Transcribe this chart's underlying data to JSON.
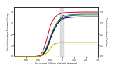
{
  "xlim": [
    -400,
    300
  ],
  "ylim_left": [
    0,
    4.5
  ],
  "ylim_right": [
    0,
    0.45
  ],
  "gray_band": [
    -14,
    14
  ],
  "lines": {
    "red": {
      "color": "#cc2222",
      "x": [
        -400,
        -380,
        -350,
        -300,
        -250,
        -220,
        -200,
        -180,
        -160,
        -140,
        -120,
        -100,
        -80,
        -60,
        -40,
        -20,
        -14,
        -7,
        0,
        7,
        14,
        30,
        60,
        100,
        150,
        200,
        250,
        300
      ],
      "y": [
        0,
        0.0,
        0.0,
        0.0,
        0.0,
        0.02,
        0.05,
        0.15,
        0.45,
        1.05,
        1.85,
        2.7,
        3.2,
        3.55,
        3.75,
        3.88,
        3.9,
        3.93,
        3.95,
        3.97,
        3.98,
        4.0,
        4.02,
        4.03,
        4.04,
        4.05,
        4.05,
        4.05
      ]
    },
    "blue": {
      "color": "#3355cc",
      "x": [
        -400,
        -380,
        -350,
        -300,
        -250,
        -220,
        -200,
        -180,
        -160,
        -140,
        -120,
        -100,
        -80,
        -60,
        -40,
        -20,
        -14,
        -7,
        0,
        7,
        14,
        30,
        60,
        100,
        150,
        200,
        250,
        300
      ],
      "y": [
        0,
        0.0,
        0.0,
        0.0,
        0.0,
        0.01,
        0.03,
        0.08,
        0.22,
        0.55,
        1.1,
        1.7,
        2.25,
        2.75,
        3.1,
        3.3,
        3.38,
        3.44,
        3.5,
        3.55,
        3.58,
        3.63,
        3.68,
        3.72,
        3.74,
        3.75,
        3.75,
        3.75
      ]
    },
    "green": {
      "color": "#228833",
      "x": [
        -400,
        -380,
        -350,
        -300,
        -250,
        -220,
        -200,
        -180,
        -160,
        -140,
        -120,
        -100,
        -80,
        -60,
        -40,
        -20,
        -14,
        -7,
        0,
        7,
        14,
        30,
        60,
        100,
        150,
        200,
        250,
        300
      ],
      "y": [
        0,
        0.0,
        0.0,
        0.0,
        0.0,
        0.01,
        0.02,
        0.05,
        0.15,
        0.38,
        0.82,
        1.45,
        2.1,
        2.65,
        3.05,
        3.35,
        3.45,
        3.55,
        3.62,
        3.68,
        3.72,
        3.76,
        3.8,
        3.83,
        3.85,
        3.86,
        3.86,
        3.86
      ]
    },
    "black": {
      "color": "#111111",
      "x": [
        -400,
        -380,
        -350,
        -300,
        -250,
        -220,
        -200,
        -180,
        -160,
        -140,
        -120,
        -100,
        -80,
        -60,
        -40,
        -20,
        -14,
        -7,
        0,
        7,
        14,
        30,
        60,
        100,
        150,
        200,
        250,
        300
      ],
      "y": [
        0,
        0.0,
        0.0,
        0.0,
        0.0,
        0.01,
        0.02,
        0.06,
        0.18,
        0.45,
        0.92,
        1.5,
        2.05,
        2.55,
        2.92,
        3.18,
        3.26,
        3.33,
        3.38,
        3.43,
        3.46,
        3.5,
        3.54,
        3.57,
        3.59,
        3.6,
        3.6,
        3.6
      ]
    },
    "yellow": {
      "color": "#ccaa00",
      "x": [
        -400,
        -380,
        -350,
        -300,
        -250,
        -220,
        -200,
        -180,
        -160,
        -140,
        -120,
        -100,
        -80,
        -60,
        -40,
        -20,
        -14,
        -7,
        0,
        7,
        14,
        30,
        60,
        100,
        150,
        200,
        250,
        300
      ],
      "y": [
        0,
        0.0,
        0.0,
        0.0,
        0.0,
        0.0,
        0.002,
        0.005,
        0.01,
        0.02,
        0.04,
        0.07,
        0.1,
        0.115,
        0.12,
        0.125,
        0.125,
        0.125,
        0.125,
        0.125,
        0.125,
        0.125,
        0.125,
        0.125,
        0.125,
        0.125,
        0.125,
        0.125
      ]
    }
  },
  "xlabel": "Day of onset of illness relative to treatment",
  "ylabel_left": "Cumulative incidence, Sacramento County",
  "ylabel_right": "Cumulative incidence, California",
  "xtick_vals": [
    -300,
    -200,
    -100,
    0,
    100,
    200,
    300
  ],
  "xtick_labels": [
    "-300",
    "-200",
    "-100",
    "0",
    "100",
    "200",
    "300"
  ],
  "yticks_left": [
    0,
    1,
    2,
    3,
    4
  ],
  "yticks_right": [
    0.0,
    0.1,
    0.2,
    0.3,
    0.4
  ],
  "background_color": "#ffffff",
  "gray_band_color": "#c8c8c8",
  "gray_band_alpha": 0.6,
  "linewidth": 0.8
}
